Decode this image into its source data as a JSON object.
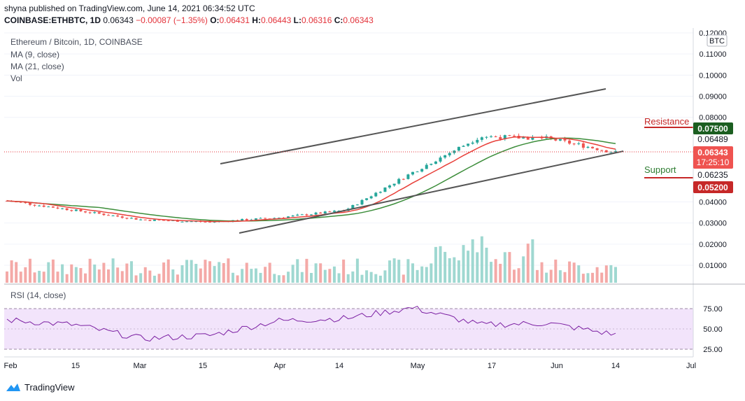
{
  "header": {
    "line1": "shyna published on TradingView.com, June 14, 2021 06:34:52 UTC",
    "symbol": "COINBASE:ETHBTC, 1D",
    "price": "0.06343",
    "change": "−0.00087 (−1.35%)",
    "o_label": "O:",
    "o": "0.06431",
    "h_label": "H:",
    "h": "0.06443",
    "l_label": "L:",
    "l": "0.06316",
    "c_label": "C:",
    "c": "0.06343"
  },
  "legend": {
    "title": "Ethereum / Bitcoin, 1D, COINBASE",
    "ma9": "MA (9, close)",
    "ma21": "MA (21, close)",
    "vol": "Vol",
    "rsi": "RSI (14, close)"
  },
  "axis": {
    "currency": "BTC",
    "price_ticks": [
      "0.12000",
      "0.11000",
      "0.10000",
      "0.09000",
      "0.08000",
      "0.04000",
      "0.03000",
      "0.02000",
      "0.01000"
    ],
    "rsi_ticks": [
      "75.00",
      "50.00",
      "25.00"
    ],
    "x_ticks": [
      "Feb",
      "15",
      "Mar",
      "15",
      "Apr",
      "14",
      "May",
      "17",
      "Jun",
      "14",
      "Jul"
    ]
  },
  "price_labels": {
    "resistance_value": "0.07500",
    "ma21_value": "0.06489",
    "last_value": "0.06343",
    "countdown": "17:25:10",
    "ma9_value": "0.06235",
    "support_value": "0.05200"
  },
  "annotations": {
    "resistance": "Resistance",
    "support": "Support"
  },
  "branding": "TradingView",
  "colors": {
    "up": "#26a69a",
    "down": "#ef5350",
    "ma9": "#e8403a",
    "ma21": "#3c8d3a",
    "rsi_line": "#7b1fa2",
    "rsi_band": "#f0e0fb",
    "resistance": "#c62828",
    "support": "#c62828"
  },
  "chart_data": {
    "type": "candlestick",
    "symbol": "ETH/BTC",
    "ylim": [
      0,
      0.12
    ],
    "x": [
      "2021-02-01",
      "2021-02-15",
      "2021-03-01",
      "2021-03-15",
      "2021-04-01",
      "2021-04-14",
      "2021-05-01",
      "2021-05-17",
      "2021-06-01",
      "2021-06-14"
    ],
    "close_approx": [
      0.0405,
      0.036,
      0.0315,
      0.0305,
      0.0325,
      0.036,
      0.054,
      0.071,
      0.07,
      0.0634
    ],
    "rsi_approx": [
      61,
      55,
      38,
      42,
      60,
      63,
      76,
      55,
      57,
      43
    ],
    "rsi_ylim": [
      25,
      75
    ],
    "trendlines": [
      {
        "name": "upper channel",
        "from": [
          "2021-03-20",
          0.0565
        ],
        "to": [
          "2021-06-09",
          0.0935
        ]
      },
      {
        "name": "lower channel",
        "from": [
          "2021-03-21",
          0.0255
        ],
        "to": [
          "2021-06-15",
          0.0655
        ]
      }
    ],
    "levels": {
      "resistance": 0.075,
      "support": 0.052,
      "last": 0.06343,
      "ma21": 0.06489,
      "ma9": 0.06235
    }
  }
}
